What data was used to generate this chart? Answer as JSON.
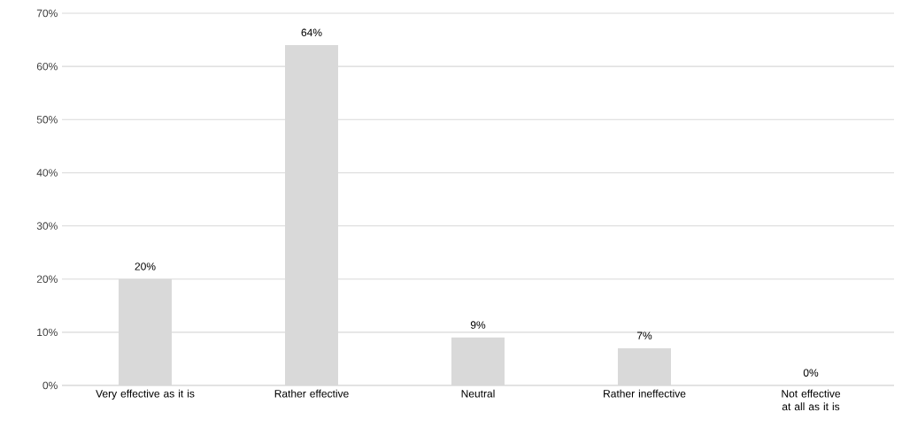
{
  "chart_data": {
    "type": "bar",
    "categories": [
      "Very effective as it is",
      "Rather effective",
      "Neutral",
      "Rather ineffective",
      "Not effective at all as it is"
    ],
    "values": [
      20,
      64,
      9,
      7,
      0
    ],
    "value_labels": [
      "20%",
      "64%",
      "9%",
      "7%",
      "0%"
    ],
    "color": "#d9d9d9",
    "ylim": [
      0,
      70
    ],
    "yticks": [
      {
        "value": 0,
        "label": "0%"
      },
      {
        "value": 10,
        "label": "10%"
      },
      {
        "value": 20,
        "label": "20%"
      },
      {
        "value": 30,
        "label": "30%"
      },
      {
        "value": 40,
        "label": "40%"
      },
      {
        "value": 50,
        "label": "50%"
      },
      {
        "value": 60,
        "label": "60%"
      },
      {
        "value": 70,
        "label": "70%"
      }
    ],
    "grid": "y"
  }
}
